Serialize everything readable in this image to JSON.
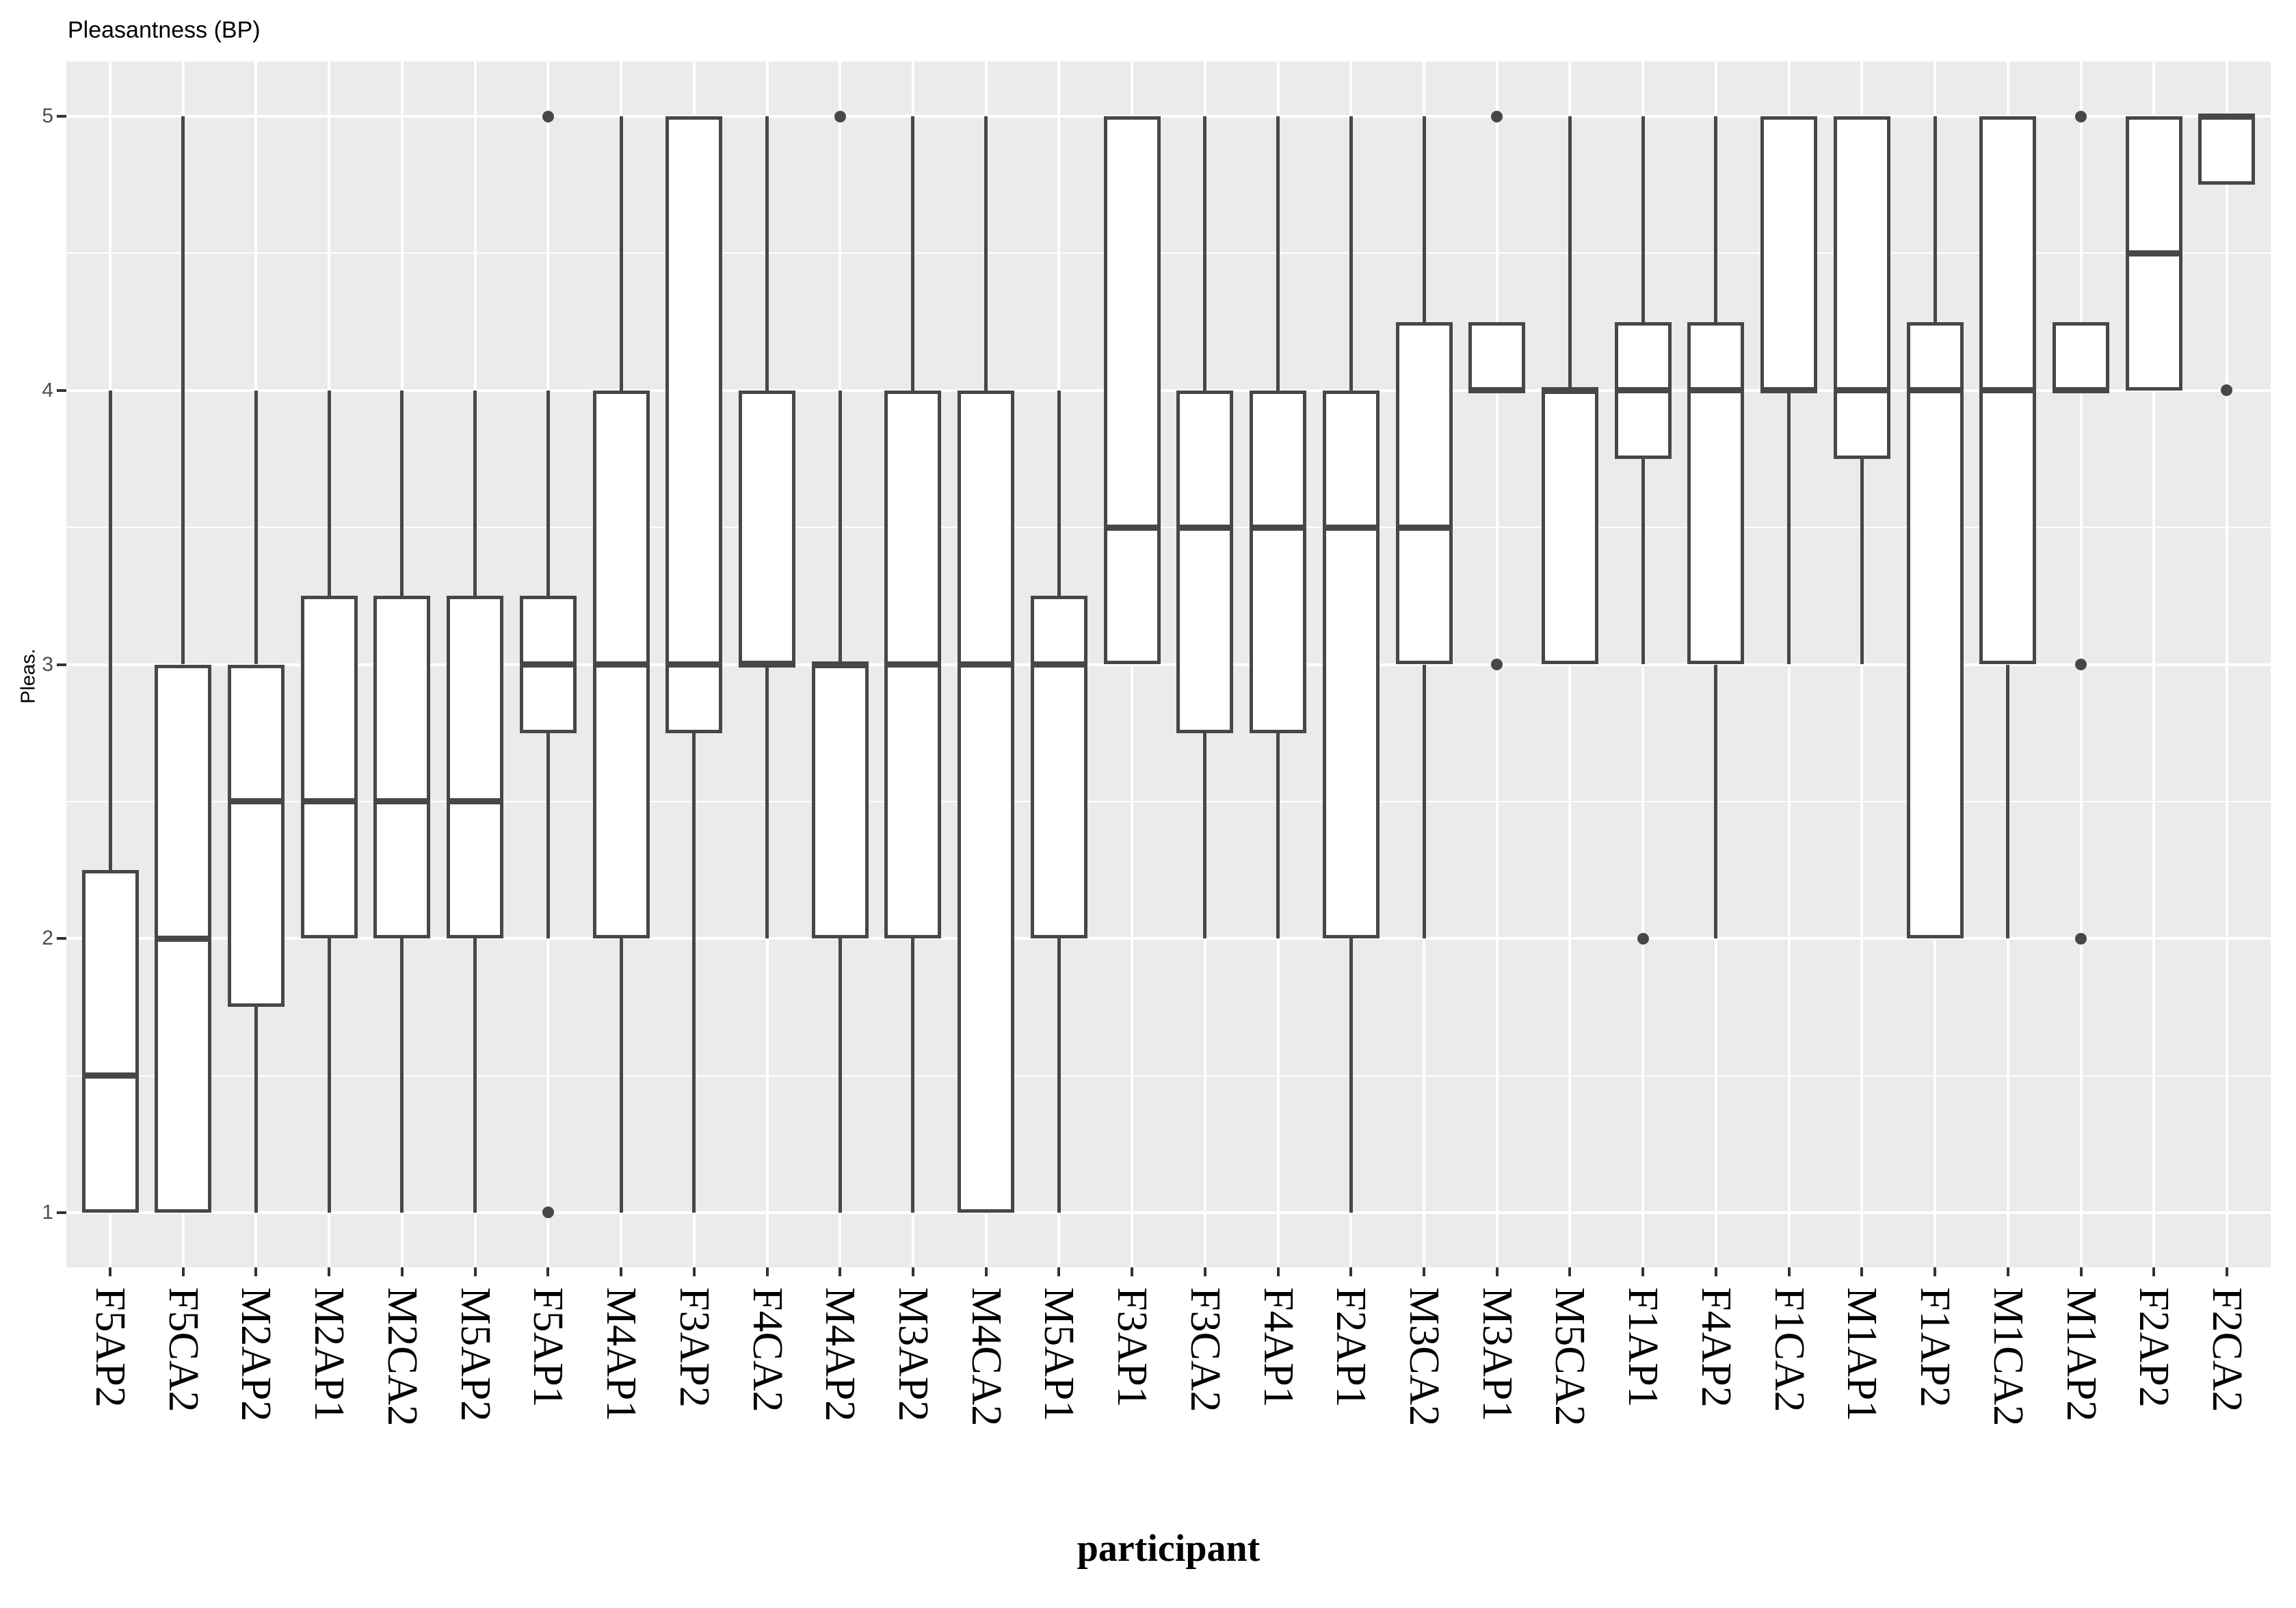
{
  "chart": {
    "title": "Pleasantness (BP)",
    "y_axis": {
      "label": "Pleas.",
      "ticks": [
        5,
        4,
        3,
        2,
        1
      ]
    },
    "x_axis": {
      "label": "participant"
    }
  },
  "chart_data": {
    "type": "boxplot",
    "title": "Pleasantness (BP)",
    "xlabel": "participant",
    "ylabel": "Pleas.",
    "ylim": [
      1,
      5
    ],
    "grid": "white-on-gray, major 1-5, minor at 0.5 steps",
    "legend": "none",
    "categories": [
      "F5AP2",
      "F5CA2",
      "M2AP2",
      "M2AP1",
      "M2CA2",
      "M5AP2",
      "F5AP1",
      "M4AP1",
      "F3AP2",
      "F4CA2",
      "M4AP2",
      "M3AP2",
      "M4CA2",
      "M5AP1",
      "F3AP1",
      "F3CA2",
      "F4AP1",
      "F2AP1",
      "M3CA2",
      "M3AP1",
      "M5CA2",
      "F1AP1",
      "F4AP2",
      "F1CA2",
      "M1AP1",
      "F1AP2",
      "M1CA2",
      "M1AP2",
      "F2AP2",
      "F2CA2"
    ],
    "series": [
      {
        "label": "F5AP2",
        "min": 1.0,
        "q1": 1.0,
        "median": 1.5,
        "q3": 2.25,
        "max": 4.0,
        "outliers": []
      },
      {
        "label": "F5CA2",
        "min": 1.0,
        "q1": 1.0,
        "median": 2.0,
        "q3": 3.0,
        "max": 5.0,
        "outliers": []
      },
      {
        "label": "M2AP2",
        "min": 1.0,
        "q1": 1.75,
        "median": 2.5,
        "q3": 3.0,
        "max": 4.0,
        "outliers": []
      },
      {
        "label": "M2AP1",
        "min": 1.0,
        "q1": 2.0,
        "median": 2.5,
        "q3": 3.25,
        "max": 4.0,
        "outliers": []
      },
      {
        "label": "M2CA2",
        "min": 1.0,
        "q1": 2.0,
        "median": 2.5,
        "q3": 3.25,
        "max": 4.0,
        "outliers": []
      },
      {
        "label": "M5AP2",
        "min": 1.0,
        "q1": 2.0,
        "median": 2.5,
        "q3": 3.25,
        "max": 4.0,
        "outliers": []
      },
      {
        "label": "F5AP1",
        "min": 2.0,
        "q1": 2.75,
        "median": 3.0,
        "q3": 3.25,
        "max": 4.0,
        "outliers": [
          5.0,
          1.0
        ]
      },
      {
        "label": "M4AP1",
        "min": 1.0,
        "q1": 2.0,
        "median": 3.0,
        "q3": 4.0,
        "max": 5.0,
        "outliers": []
      },
      {
        "label": "F3AP2",
        "min": 1.0,
        "q1": 2.75,
        "median": 3.0,
        "q3": 5.0,
        "max": 5.0,
        "outliers": []
      },
      {
        "label": "F4CA2",
        "min": 2.0,
        "q1": 3.0,
        "median": 3.0,
        "q3": 4.0,
        "max": 5.0,
        "outliers": []
      },
      {
        "label": "M4AP2",
        "min": 1.0,
        "q1": 2.0,
        "median": 3.0,
        "q3": 3.0,
        "max": 4.0,
        "outliers": [
          5.0
        ]
      },
      {
        "label": "M3AP2",
        "min": 1.0,
        "q1": 2.0,
        "median": 3.0,
        "q3": 4.0,
        "max": 5.0,
        "outliers": []
      },
      {
        "label": "M4CA2",
        "min": 1.0,
        "q1": 1.0,
        "median": 3.0,
        "q3": 4.0,
        "max": 5.0,
        "outliers": []
      },
      {
        "label": "M5AP1",
        "min": 1.0,
        "q1": 2.0,
        "median": 3.0,
        "q3": 3.25,
        "max": 4.0,
        "outliers": []
      },
      {
        "label": "F3AP1",
        "min": 3.0,
        "q1": 3.0,
        "median": 3.5,
        "q3": 5.0,
        "max": 5.0,
        "outliers": []
      },
      {
        "label": "F3CA2",
        "min": 2.0,
        "q1": 2.75,
        "median": 3.5,
        "q3": 4.0,
        "max": 5.0,
        "outliers": []
      },
      {
        "label": "F4AP1",
        "min": 2.0,
        "q1": 2.75,
        "median": 3.5,
        "q3": 4.0,
        "max": 5.0,
        "outliers": []
      },
      {
        "label": "F2AP1",
        "min": 1.0,
        "q1": 2.0,
        "median": 3.5,
        "q3": 4.0,
        "max": 5.0,
        "outliers": []
      },
      {
        "label": "M3CA2",
        "min": 2.0,
        "q1": 3.0,
        "median": 3.5,
        "q3": 4.25,
        "max": 5.0,
        "outliers": []
      },
      {
        "label": "M3AP1",
        "min": 4.0,
        "q1": 4.0,
        "median": 4.0,
        "q3": 4.25,
        "max": 4.25,
        "outliers": [
          5.0,
          3.0
        ]
      },
      {
        "label": "M5CA2",
        "min": 3.0,
        "q1": 3.0,
        "median": 4.0,
        "q3": 4.0,
        "max": 5.0,
        "outliers": []
      },
      {
        "label": "F1AP1",
        "min": 3.0,
        "q1": 3.75,
        "median": 4.0,
        "q3": 4.25,
        "max": 5.0,
        "outliers": [
          2.0
        ]
      },
      {
        "label": "F4AP2",
        "min": 2.0,
        "q1": 3.0,
        "median": 4.0,
        "q3": 4.25,
        "max": 5.0,
        "outliers": []
      },
      {
        "label": "F1CA2",
        "min": 3.0,
        "q1": 4.0,
        "median": 4.0,
        "q3": 5.0,
        "max": 5.0,
        "outliers": []
      },
      {
        "label": "M1AP1",
        "min": 3.0,
        "q1": 3.75,
        "median": 4.0,
        "q3": 5.0,
        "max": 5.0,
        "outliers": []
      },
      {
        "label": "F1AP2",
        "min": 2.0,
        "q1": 2.0,
        "median": 4.0,
        "q3": 4.25,
        "max": 5.0,
        "outliers": []
      },
      {
        "label": "M1CA2",
        "min": 2.0,
        "q1": 3.0,
        "median": 4.0,
        "q3": 5.0,
        "max": 5.0,
        "outliers": []
      },
      {
        "label": "M1AP2",
        "min": 4.0,
        "q1": 4.0,
        "median": 4.0,
        "q3": 4.25,
        "max": 4.25,
        "outliers": [
          5.0,
          3.0,
          2.0
        ]
      },
      {
        "label": "F2AP2",
        "min": 4.0,
        "q1": 4.0,
        "median": 4.5,
        "q3": 5.0,
        "max": 5.0,
        "outliers": []
      },
      {
        "label": "F2CA2",
        "min": 4.75,
        "q1": 4.75,
        "median": 5.0,
        "q3": 5.0,
        "max": 5.0,
        "outliers": [
          4.0
        ]
      }
    ]
  },
  "colors": {
    "panel_bg": "#EBEBEB",
    "gridline": "#FFFFFF",
    "box_stroke": "#474747",
    "box_fill": "#FFFFFF",
    "tick_mark": "#333333",
    "tick_label": "#4D4D4D",
    "text": "#000000"
  }
}
